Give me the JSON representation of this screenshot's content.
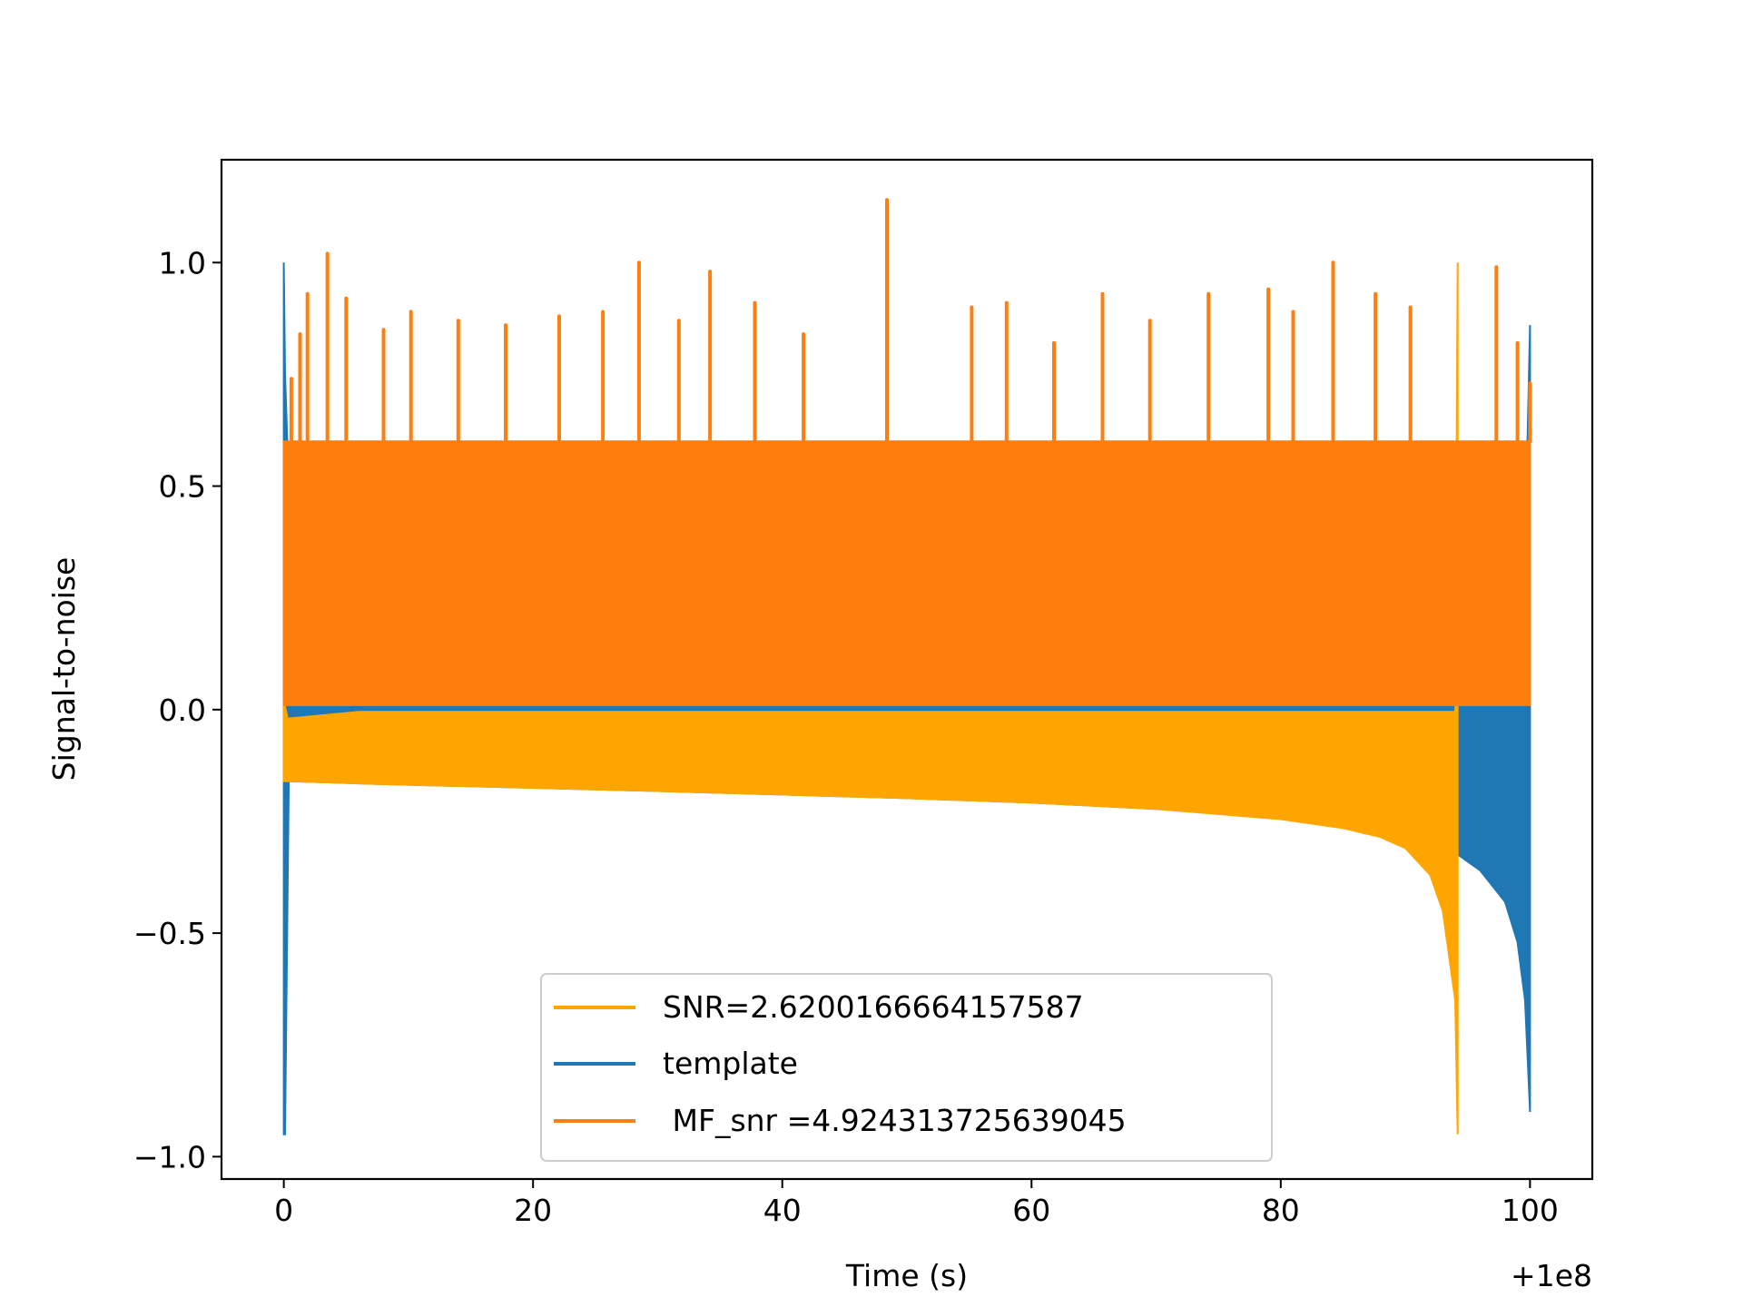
{
  "chart_data": {
    "type": "line",
    "title": "",
    "xlabel": "Time (s)",
    "ylabel": "Signal-to-noise",
    "x_offset_label": "+1e8",
    "xlim": [
      -5,
      105
    ],
    "ylim": [
      -1.05,
      1.23
    ],
    "x_ticks": [
      0,
      20,
      40,
      60,
      80,
      100
    ],
    "x_tick_labels": [
      "0",
      "20",
      "40",
      "60",
      "80",
      "100"
    ],
    "y_ticks": [
      -1.0,
      -0.5,
      0.0,
      0.5,
      1.0
    ],
    "y_tick_labels": [
      "−1.0",
      "−0.5",
      "0.0",
      "0.5",
      "1.0"
    ],
    "grid": false,
    "legend_position": "lower-center",
    "series": [
      {
        "name": "SNR=2.6200166664157587",
        "color": "#ffa500",
        "x": [
          0,
          0.3,
          6,
          10,
          20,
          30,
          40,
          50,
          60,
          70,
          80,
          85,
          88,
          90,
          92,
          93,
          94,
          94.2
        ],
        "lower": [
          -0.16,
          -0.16,
          -0.165,
          -0.168,
          -0.175,
          -0.182,
          -0.19,
          -0.198,
          -0.208,
          -0.222,
          -0.245,
          -0.265,
          -0.285,
          -0.31,
          -0.37,
          -0.45,
          -0.65,
          -0.95
        ],
        "upper": [
          0.02,
          -0.02,
          -0.005,
          -0.005,
          -0.005,
          -0.005,
          -0.005,
          -0.005,
          -0.005,
          -0.005,
          -0.005,
          -0.005,
          -0.005,
          -0.005,
          -0.005,
          -0.005,
          -0.005,
          1.0
        ]
      },
      {
        "name": "template",
        "color": "#1f77b4",
        "x": [
          0,
          0.1,
          0.4,
          6,
          10,
          20,
          30,
          40,
          50,
          60,
          70,
          80,
          85,
          90,
          94,
          96,
          98,
          99,
          99.6,
          100
        ],
        "lower": [
          -0.95,
          -0.95,
          -0.16,
          -0.165,
          -0.168,
          -0.175,
          -0.182,
          -0.19,
          -0.198,
          -0.208,
          -0.222,
          -0.24,
          -0.255,
          -0.28,
          -0.32,
          -0.36,
          -0.43,
          -0.52,
          -0.65,
          -0.9
        ],
        "upper": [
          1.0,
          0.75,
          0.5,
          0.35,
          0.35,
          0.35,
          0.35,
          0.35,
          0.35,
          0.35,
          0.35,
          0.35,
          0.35,
          0.35,
          0.35,
          0.35,
          0.35,
          0.35,
          0.35,
          0.86
        ]
      },
      {
        "name": " MF_snr =4.924313725639045",
        "color": "#ff7f0e",
        "x": [
          0,
          100
        ],
        "lower": [
          0.01,
          0.01
        ],
        "upper": [
          0.6,
          0.6
        ],
        "peaks": [
          {
            "x": 0.6,
            "y": 0.74
          },
          {
            "x": 1.3,
            "y": 0.84
          },
          {
            "x": 1.9,
            "y": 0.93
          },
          {
            "x": 3.5,
            "y": 1.02
          },
          {
            "x": 5.0,
            "y": 0.92
          },
          {
            "x": 8.0,
            "y": 0.85
          },
          {
            "x": 10.2,
            "y": 0.89
          },
          {
            "x": 14.0,
            "y": 0.87
          },
          {
            "x": 17.8,
            "y": 0.86
          },
          {
            "x": 22.1,
            "y": 0.88
          },
          {
            "x": 25.6,
            "y": 0.89
          },
          {
            "x": 28.5,
            "y": 1.0
          },
          {
            "x": 31.7,
            "y": 0.87
          },
          {
            "x": 34.2,
            "y": 0.98
          },
          {
            "x": 37.8,
            "y": 0.91
          },
          {
            "x": 41.7,
            "y": 0.84
          },
          {
            "x": 48.4,
            "y": 1.14
          },
          {
            "x": 55.2,
            "y": 0.9
          },
          {
            "x": 58.0,
            "y": 0.91
          },
          {
            "x": 61.8,
            "y": 0.82
          },
          {
            "x": 65.7,
            "y": 0.93
          },
          {
            "x": 69.5,
            "y": 0.87
          },
          {
            "x": 74.2,
            "y": 0.93
          },
          {
            "x": 79.0,
            "y": 0.94
          },
          {
            "x": 81.0,
            "y": 0.89
          },
          {
            "x": 84.2,
            "y": 1.0
          },
          {
            "x": 87.6,
            "y": 0.93
          },
          {
            "x": 90.4,
            "y": 0.9
          },
          {
            "x": 97.3,
            "y": 0.99
          },
          {
            "x": 99.0,
            "y": 0.82
          },
          {
            "x": 100.0,
            "y": 0.73
          }
        ]
      }
    ]
  }
}
